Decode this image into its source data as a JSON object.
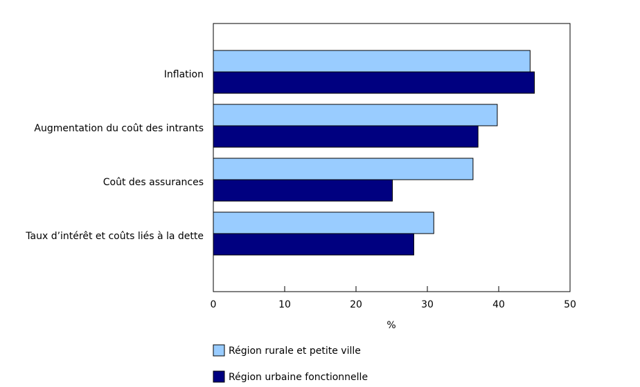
{
  "chart_data": {
    "type": "hbar",
    "categories": [
      "Inflation",
      "Augmentation du coût des intrants",
      "Coût des assurances",
      "Taux d’intérêt et coûts liés à la dette"
    ],
    "series": [
      {
        "name": "Région rurale et petite ville",
        "color": "#99ccff",
        "values": [
          44.4,
          39.8,
          36.4,
          30.9
        ]
      },
      {
        "name": "Région urbaine fonctionnelle",
        "color": "#000080",
        "values": [
          45.0,
          37.1,
          25.1,
          28.1
        ]
      }
    ],
    "xlim": [
      0,
      50
    ],
    "xticks": [
      0,
      10,
      20,
      30,
      40,
      50
    ],
    "xlabel": "%"
  }
}
